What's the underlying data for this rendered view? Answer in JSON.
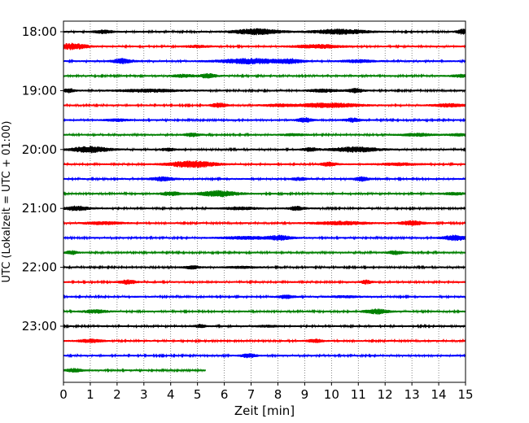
{
  "chart_data": {
    "type": "line",
    "title": "",
    "xlabel": "Zeit  [min]",
    "ylabel": "UTC (Lokalzeit = UTC + 01:00)",
    "xlim": [
      0,
      15
    ],
    "x_ticks": [
      "0",
      "1",
      "2",
      "3",
      "4",
      "5",
      "6",
      "7",
      "8",
      "9",
      "10",
      "11",
      "12",
      "13",
      "14",
      "15"
    ],
    "y_tick_labels": [
      "18:00",
      "19:00",
      "20:00",
      "21:00",
      "22:00",
      "23:00"
    ],
    "grid": "vertical dotted",
    "trace_interval_min": 15,
    "start_time": "18:00",
    "last_trace_end_min": 5.3,
    "colors": [
      "#000000",
      "#ff0000",
      "#0000ff",
      "#008000"
    ],
    "traces": [
      {
        "start": "18:00",
        "events": [
          [
            1.5,
            0.25,
            1.8
          ],
          [
            7.2,
            0.6,
            3.2
          ],
          [
            10.3,
            0.7,
            2.8
          ],
          [
            14.9,
            0.15,
            2.8
          ]
        ]
      },
      {
        "start": "18:15",
        "events": [
          [
            0.3,
            0.4,
            3.5
          ],
          [
            5.0,
            0.3,
            1.2
          ],
          [
            9.5,
            0.6,
            2.0
          ]
        ]
      },
      {
        "start": "18:30",
        "events": [
          [
            2.2,
            0.25,
            2.8
          ],
          [
            7.0,
            0.8,
            3.0
          ],
          [
            8.5,
            0.3,
            2.2
          ],
          [
            11.0,
            0.4,
            1.5
          ]
        ]
      },
      {
        "start": "18:45",
        "events": [
          [
            4.5,
            0.3,
            1.5
          ],
          [
            5.4,
            0.2,
            2.5
          ],
          [
            14.8,
            0.2,
            1.5
          ]
        ]
      },
      {
        "start": "19:00",
        "events": [
          [
            0.2,
            0.15,
            2.2
          ],
          [
            3.2,
            0.8,
            1.5
          ],
          [
            9.7,
            0.4,
            1.5
          ],
          [
            10.9,
            0.2,
            2.2
          ]
        ]
      },
      {
        "start": "19:15",
        "events": [
          [
            5.8,
            0.2,
            2.5
          ],
          [
            8.0,
            0.4,
            1.2
          ],
          [
            9.9,
            0.8,
            2.5
          ],
          [
            14.4,
            0.4,
            1.8
          ]
        ]
      },
      {
        "start": "19:30",
        "events": [
          [
            2.0,
            0.3,
            1.2
          ],
          [
            9.0,
            0.2,
            2.4
          ],
          [
            10.8,
            0.2,
            2.2
          ]
        ]
      },
      {
        "start": "19:45",
        "events": [
          [
            4.8,
            0.2,
            1.8
          ],
          [
            8.6,
            0.3,
            1.0
          ],
          [
            13.2,
            0.4,
            1.5
          ],
          [
            14.8,
            0.3,
            1.2
          ]
        ]
      },
      {
        "start": "20:00",
        "events": [
          [
            1.0,
            0.5,
            3.5
          ],
          [
            3.9,
            0.2,
            1.5
          ],
          [
            9.2,
            0.2,
            2.0
          ],
          [
            10.9,
            0.6,
            2.8
          ]
        ]
      },
      {
        "start": "20:15",
        "events": [
          [
            4.8,
            0.6,
            3.8
          ],
          [
            9.9,
            0.2,
            2.3
          ],
          [
            12.5,
            0.5,
            1.3
          ]
        ]
      },
      {
        "start": "20:30",
        "events": [
          [
            3.7,
            0.3,
            2.2
          ],
          [
            8.8,
            0.2,
            1.5
          ],
          [
            11.1,
            0.2,
            2.3
          ]
        ]
      },
      {
        "start": "20:45",
        "events": [
          [
            4.0,
            0.25,
            2.0
          ],
          [
            5.8,
            0.5,
            3.3
          ],
          [
            14.6,
            0.3,
            1.2
          ]
        ]
      },
      {
        "start": "21:00",
        "events": [
          [
            0.5,
            0.3,
            2.5
          ],
          [
            6.6,
            0.4,
            1.5
          ],
          [
            8.7,
            0.2,
            2.2
          ]
        ]
      },
      {
        "start": "21:15",
        "events": [
          [
            1.5,
            0.5,
            1.5
          ],
          [
            10.4,
            0.7,
            1.8
          ],
          [
            13.0,
            0.3,
            2.5
          ]
        ]
      },
      {
        "start": "21:30",
        "events": [
          [
            6.8,
            0.6,
            1.5
          ],
          [
            8.1,
            0.3,
            2.5
          ],
          [
            14.6,
            0.3,
            2.8
          ]
        ]
      },
      {
        "start": "21:45",
        "events": [
          [
            0.3,
            0.15,
            2.0
          ],
          [
            12.4,
            0.2,
            2.0
          ]
        ]
      },
      {
        "start": "22:00",
        "events": [
          [
            4.8,
            0.2,
            1.8
          ],
          [
            6.7,
            0.4,
            0.9
          ]
        ]
      },
      {
        "start": "22:15",
        "events": [
          [
            2.4,
            0.2,
            2.4
          ],
          [
            11.3,
            0.15,
            2.0
          ]
        ]
      },
      {
        "start": "22:30",
        "events": [
          [
            8.3,
            0.2,
            2.0
          ],
          [
            10.5,
            0.4,
            0.9
          ]
        ]
      },
      {
        "start": "22:45",
        "events": [
          [
            1.2,
            0.3,
            1.8
          ],
          [
            11.7,
            0.3,
            2.6
          ]
        ]
      },
      {
        "start": "23:00",
        "events": [
          [
            5.1,
            0.15,
            1.8
          ],
          [
            7.6,
            0.3,
            0.9
          ]
        ]
      },
      {
        "start": "23:15",
        "events": [
          [
            1.0,
            0.3,
            1.8
          ],
          [
            9.4,
            0.2,
            1.8
          ]
        ]
      },
      {
        "start": "23:30",
        "events": [
          [
            6.9,
            0.2,
            2.2
          ]
        ]
      },
      {
        "start": "23:45",
        "events": [
          [
            0.4,
            0.2,
            2.0
          ]
        ]
      }
    ]
  }
}
